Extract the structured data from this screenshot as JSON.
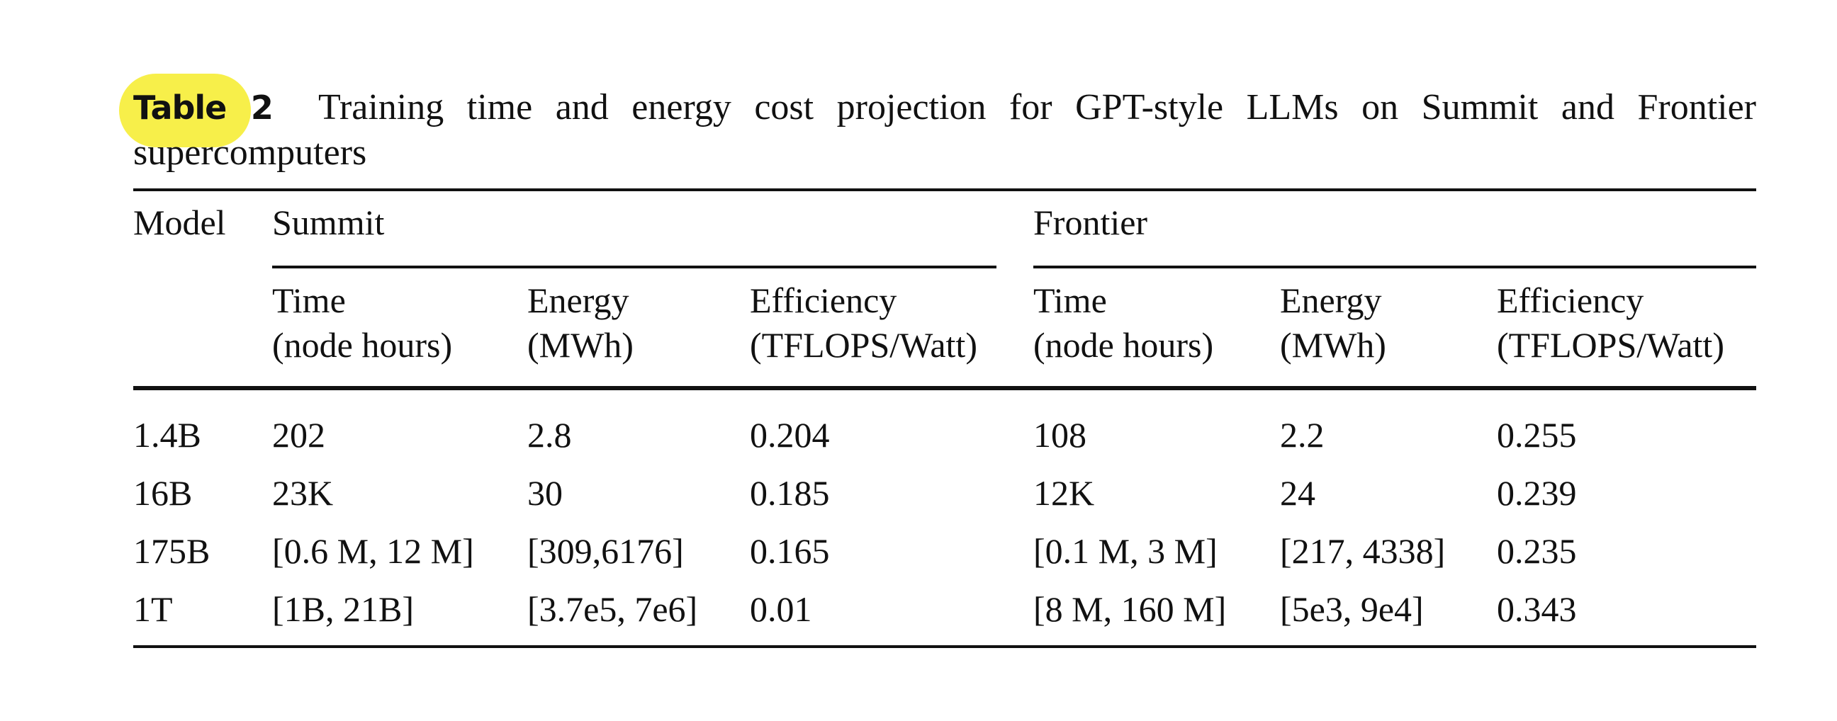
{
  "caption": {
    "label": "Table 2",
    "text": "Training time and energy cost projection for GPT-style LLMs on Summit and Frontier supercomputers"
  },
  "table": {
    "model_header": "Model",
    "groups": [
      "Summit",
      "Frontier"
    ],
    "subheaders": [
      {
        "line1": "Time",
        "line2": "(node hours)"
      },
      {
        "line1": "Energy",
        "line2": "(MWh)"
      },
      {
        "line1": "Efficiency",
        "line2": "(TFLOPS/Watt)"
      },
      {
        "line1": "Time",
        "line2": "(node hours)"
      },
      {
        "line1": "Energy",
        "line2": "(MWh)"
      },
      {
        "line1": "Efficiency",
        "line2": "(TFLOPS/Watt)"
      }
    ],
    "rows": [
      [
        "1.4B",
        "202",
        "2.8",
        "0.204",
        "108",
        "2.2",
        "0.255"
      ],
      [
        "16B",
        "23K",
        "30",
        "0.185",
        "12K",
        "24",
        "0.239"
      ],
      [
        "175B",
        "[0.6 M, 12 M]",
        "[309,6176]",
        "0.165",
        "[0.1 M, 3 M]",
        "[217, 4338]",
        "0.235"
      ],
      [
        "1T",
        "[1B, 21B]",
        "[3.7e5, 7e6]",
        "0.01",
        "[8 M, 160 M]",
        "[5e3, 9e4]",
        "0.343"
      ]
    ]
  },
  "colors": {
    "highlight": "#f7ef4a",
    "text": "#111111"
  }
}
